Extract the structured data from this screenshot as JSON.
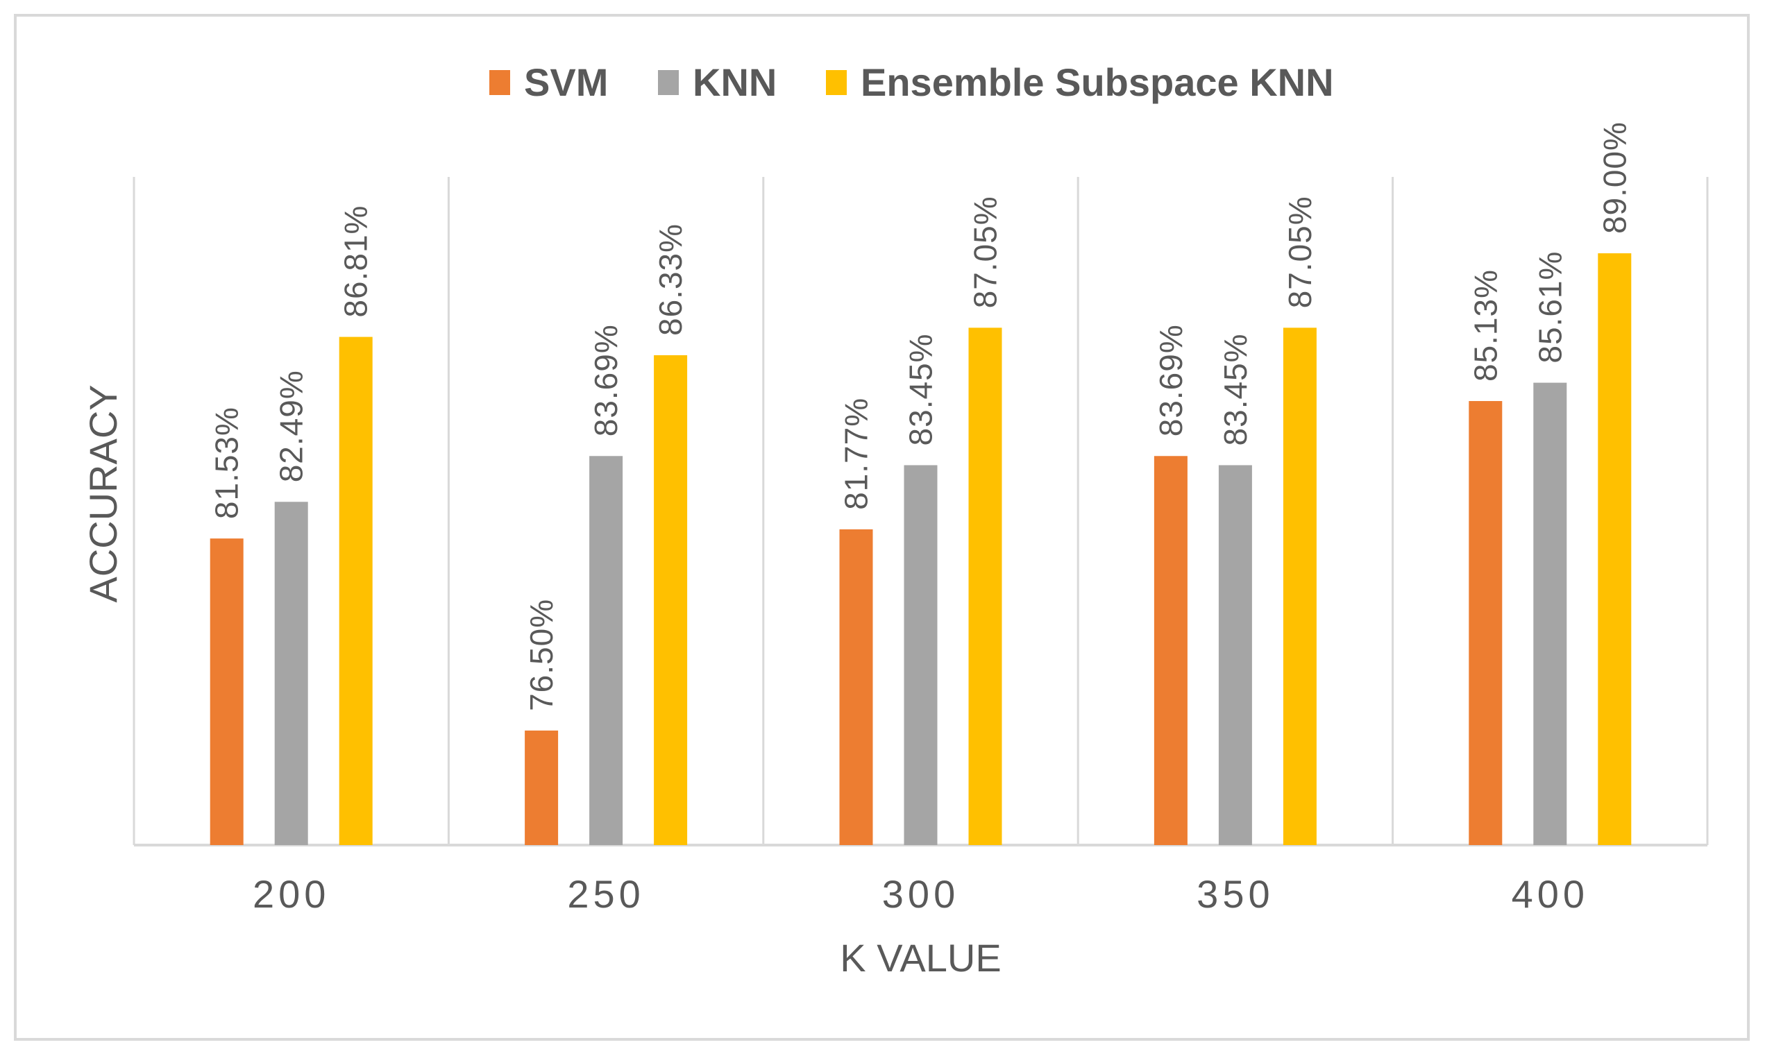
{
  "chart_data": {
    "type": "bar",
    "title": "",
    "xlabel": "K VALUE",
    "ylabel": "ACCURACY",
    "ylim": [
      73.5,
      91.0
    ],
    "grid": "vertical-category-separators",
    "legend_position": "top",
    "categories": [
      "200",
      "250",
      "300",
      "350",
      "400"
    ],
    "series": [
      {
        "name": "SVM",
        "color": "#ED7D31",
        "values": [
          81.53,
          76.5,
          81.77,
          83.69,
          85.13
        ],
        "labels": [
          "81.53%",
          "76.50%",
          "81.77%",
          "83.69%",
          "85.13%"
        ]
      },
      {
        "name": "KNN",
        "color": "#A5A5A5",
        "values": [
          82.49,
          83.69,
          83.45,
          83.45,
          85.61
        ],
        "labels": [
          "82.49%",
          "83.69%",
          "83.45%",
          "83.45%",
          "85.61%"
        ]
      },
      {
        "name": "Ensemble Subspace KNN",
        "color": "#FFC000",
        "values": [
          86.81,
          86.33,
          87.05,
          87.05,
          89.0
        ],
        "labels": [
          "86.81%",
          "86.33%",
          "87.05%",
          "87.05%",
          "89.00%"
        ]
      }
    ]
  }
}
